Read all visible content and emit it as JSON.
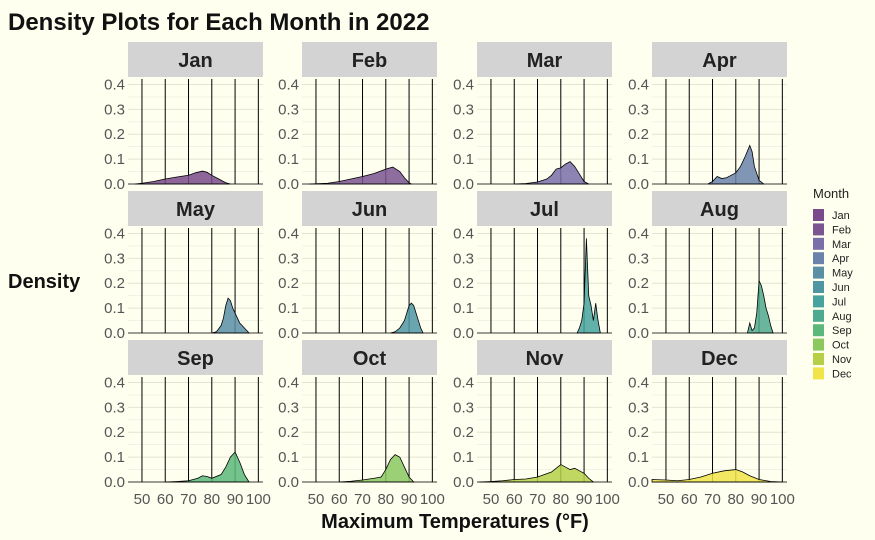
{
  "chart_data": {
    "type": "area",
    "title": "Density Plots for Each Month in 2022",
    "xlabel": "Maximum Temperatures (°F)",
    "ylabel": "Density",
    "xlim": [
      44,
      102
    ],
    "ylim": [
      0,
      0.43
    ],
    "x_ticks": [
      "50",
      "60",
      "70",
      "80",
      "90",
      "100"
    ],
    "x_tick_values": [
      50,
      60,
      70,
      80,
      90,
      100
    ],
    "y_ticks": [
      "0.0",
      "0.1",
      "0.2",
      "0.3",
      "0.4"
    ],
    "y_tick_values": [
      0,
      0.1,
      0.2,
      0.3,
      0.4
    ],
    "grid": true,
    "legend": {
      "title": "Month",
      "placement": "right"
    },
    "panels": [
      {
        "name": "Jan",
        "color": "#7a4a8a",
        "x": [
          47,
          50,
          55,
          60,
          65,
          70,
          73,
          76,
          78,
          80,
          83,
          86,
          88
        ],
        "density": [
          0,
          0.003,
          0.01,
          0.02,
          0.028,
          0.035,
          0.045,
          0.052,
          0.047,
          0.035,
          0.02,
          0.005,
          0
        ]
      },
      {
        "name": "Feb",
        "color": "#7a5590",
        "x": [
          47,
          55,
          60,
          65,
          70,
          75,
          80,
          83,
          86,
          88,
          90,
          91
        ],
        "density": [
          0,
          0.003,
          0.01,
          0.02,
          0.03,
          0.042,
          0.06,
          0.068,
          0.05,
          0.025,
          0.005,
          0
        ]
      },
      {
        "name": "Mar",
        "color": "#7a6fa8",
        "x": [
          60,
          65,
          70,
          74,
          76,
          78,
          80,
          82,
          84,
          86,
          88,
          90,
          92
        ],
        "density": [
          0,
          0.002,
          0.008,
          0.02,
          0.035,
          0.06,
          0.065,
          0.08,
          0.09,
          0.07,
          0.04,
          0.01,
          0
        ]
      },
      {
        "name": "Apr",
        "color": "#6b83aa",
        "x": [
          68,
          70,
          72,
          74,
          76,
          78,
          80,
          82,
          84,
          86,
          87,
          88,
          90,
          92
        ],
        "density": [
          0,
          0.01,
          0.03,
          0.022,
          0.025,
          0.035,
          0.045,
          0.07,
          0.11,
          0.155,
          0.13,
          0.07,
          0.015,
          0
        ]
      },
      {
        "name": "May",
        "color": "#5a8fa6",
        "x": [
          80,
          82,
          84,
          85,
          86,
          87,
          88,
          89,
          90,
          91,
          92,
          94,
          96
        ],
        "density": [
          0,
          0.005,
          0.03,
          0.06,
          0.11,
          0.14,
          0.13,
          0.1,
          0.08,
          0.06,
          0.04,
          0.02,
          0
        ]
      },
      {
        "name": "Jun",
        "color": "#4f96a3",
        "x": [
          82,
          84,
          86,
          88,
          89,
          90,
          91,
          92,
          93,
          94,
          95,
          96
        ],
        "density": [
          0,
          0.005,
          0.02,
          0.05,
          0.08,
          0.11,
          0.12,
          0.11,
          0.08,
          0.05,
          0.02,
          0
        ]
      },
      {
        "name": "Jul",
        "color": "#46a39e",
        "x": [
          87,
          88,
          89,
          90,
          91,
          92,
          93,
          94,
          95,
          96,
          97
        ],
        "density": [
          0,
          0.02,
          0.05,
          0.12,
          0.38,
          0.15,
          0.11,
          0.05,
          0.12,
          0.05,
          0
        ]
      },
      {
        "name": "Aug",
        "color": "#4fa98e",
        "x": [
          85,
          86,
          87,
          88,
          89,
          90,
          91,
          92,
          93,
          94,
          95,
          96
        ],
        "density": [
          0,
          0.04,
          0.01,
          0.02,
          0.08,
          0.21,
          0.19,
          0.15,
          0.1,
          0.07,
          0.03,
          0
        ]
      },
      {
        "name": "Sep",
        "color": "#5cb87a",
        "x": [
          60,
          65,
          70,
          74,
          76,
          78,
          80,
          84,
          86,
          88,
          90,
          92,
          94,
          96
        ],
        "density": [
          0,
          0.002,
          0.005,
          0.015,
          0.025,
          0.022,
          0.015,
          0.03,
          0.06,
          0.1,
          0.12,
          0.08,
          0.03,
          0
        ]
      },
      {
        "name": "Oct",
        "color": "#8bc860",
        "x": [
          60,
          65,
          70,
          75,
          78,
          80,
          82,
          84,
          86,
          88,
          90,
          92
        ],
        "density": [
          0,
          0.003,
          0.008,
          0.015,
          0.02,
          0.05,
          0.09,
          0.11,
          0.1,
          0.06,
          0.02,
          0
        ]
      },
      {
        "name": "Nov",
        "color": "#b5d048",
        "x": [
          45,
          50,
          55,
          60,
          65,
          70,
          73,
          76,
          78,
          80,
          82,
          84,
          86,
          88,
          90,
          92,
          94
        ],
        "density": [
          0,
          0.002,
          0.005,
          0.01,
          0.012,
          0.02,
          0.03,
          0.04,
          0.055,
          0.07,
          0.06,
          0.05,
          0.055,
          0.045,
          0.035,
          0.015,
          0
        ]
      },
      {
        "name": "Dec",
        "color": "#f0e448",
        "x": [
          44,
          50,
          55,
          60,
          65,
          70,
          75,
          80,
          83,
          86,
          90,
          95,
          100
        ],
        "density": [
          0.01,
          0.008,
          0.005,
          0.01,
          0.02,
          0.035,
          0.045,
          0.05,
          0.04,
          0.025,
          0.01,
          0.002,
          0
        ]
      }
    ]
  }
}
